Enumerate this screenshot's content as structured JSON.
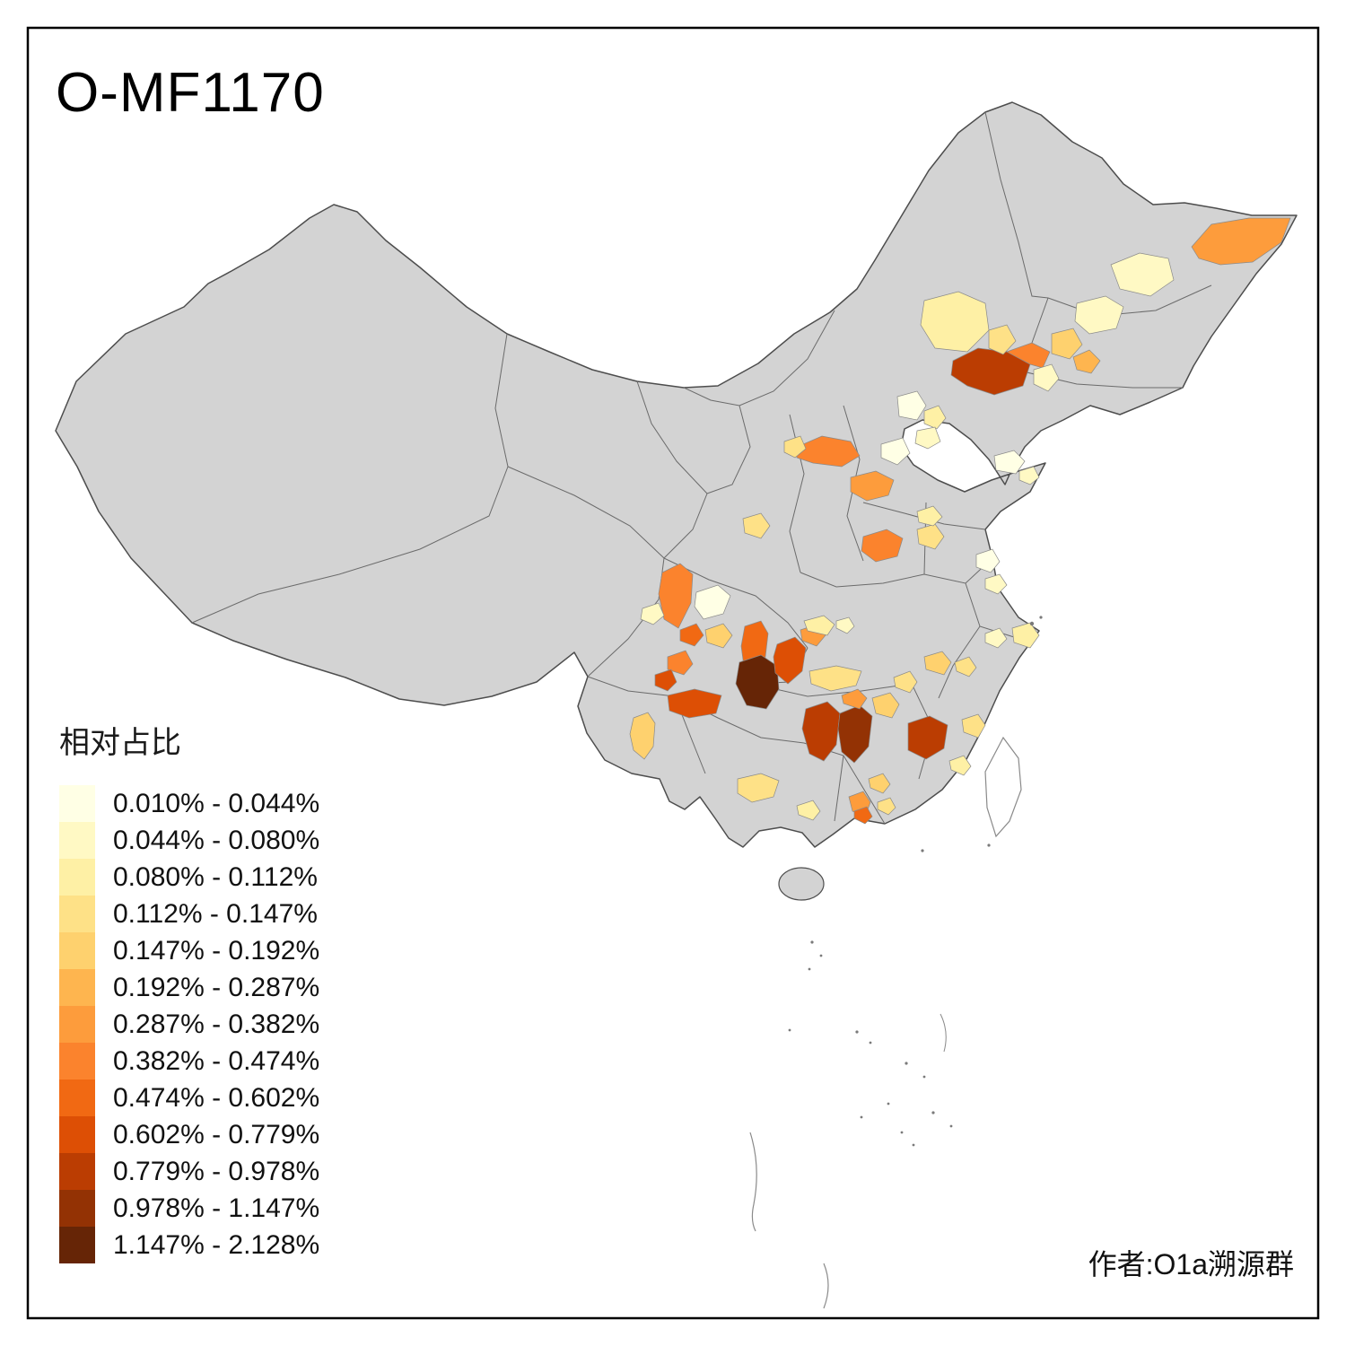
{
  "title": "O-MF1170",
  "legend": {
    "title": "相对占比",
    "classes": [
      {
        "label": "0.010% - 0.044%",
        "color": "#FFFFE5"
      },
      {
        "label": "0.044% - 0.080%",
        "color": "#FFF9C4"
      },
      {
        "label": "0.080% - 0.112%",
        "color": "#FEF0A5"
      },
      {
        "label": "0.112% - 0.147%",
        "color": "#FEE187"
      },
      {
        "label": "0.147% - 0.192%",
        "color": "#FED16E"
      },
      {
        "label": "0.192% - 0.287%",
        "color": "#FEB54F"
      },
      {
        "label": "0.287% - 0.382%",
        "color": "#FD9C3C"
      },
      {
        "label": "0.382% - 0.474%",
        "color": "#FB832D"
      },
      {
        "label": "0.474% - 0.602%",
        "color": "#F16913"
      },
      {
        "label": "0.602% - 0.779%",
        "color": "#DD4F05"
      },
      {
        "label": "0.779% - 0.978%",
        "color": "#BB3D02"
      },
      {
        "label": "0.978% - 1.147%",
        "color": "#933204"
      },
      {
        "label": "1.147% - 2.128%",
        "color": "#662506"
      }
    ]
  },
  "credit": "作者:O1a溯源群",
  "map": {
    "base_fill": "#D3D3D3",
    "boundary_color": "#4D4D4D",
    "patch_colors": [
      "#FD9C3C",
      "#FFF9C4",
      "#FFF9C4",
      "#FED16E",
      "#FEB54F",
      "#BB3D02",
      "#FB832D",
      "#FFF9C4",
      "#FEF0A5",
      "#FEE187",
      "#FFFFE5",
      "#FEF0A5",
      "#FFF9C4",
      "#FFFFE5",
      "#FFFFE5",
      "#FFF9C4",
      "#FB832D",
      "#FEE187",
      "#FD9C3C",
      "#FB832D",
      "#FEE187",
      "#FEF0A5",
      "#FEE187",
      "#FFFFE5",
      "#FFF9C4",
      "#FEF0A5",
      "#FFF9C4",
      "#FB832D",
      "#FFFFE5",
      "#FFF9C4",
      "#FED16E",
      "#F16913",
      "#FB832D",
      "#DD4F05",
      "#DD4F05",
      "#F16913",
      "#662506",
      "#DD4F05",
      "#FD9C3C",
      "#FEF0A5",
      "#FFF9C4",
      "#FEE187",
      "#BB3D02",
      "#933204",
      "#FD9C3C",
      "#FED16E",
      "#BB3D02",
      "#FEE187",
      "#FED16E",
      "#FEE187",
      "#FEE187",
      "#FEF0A5",
      "#FED16E",
      "#FEE187",
      "#FEF0A5",
      "#FD9C3C",
      "#FED16E",
      "#F16913",
      "#FEE187"
    ]
  }
}
